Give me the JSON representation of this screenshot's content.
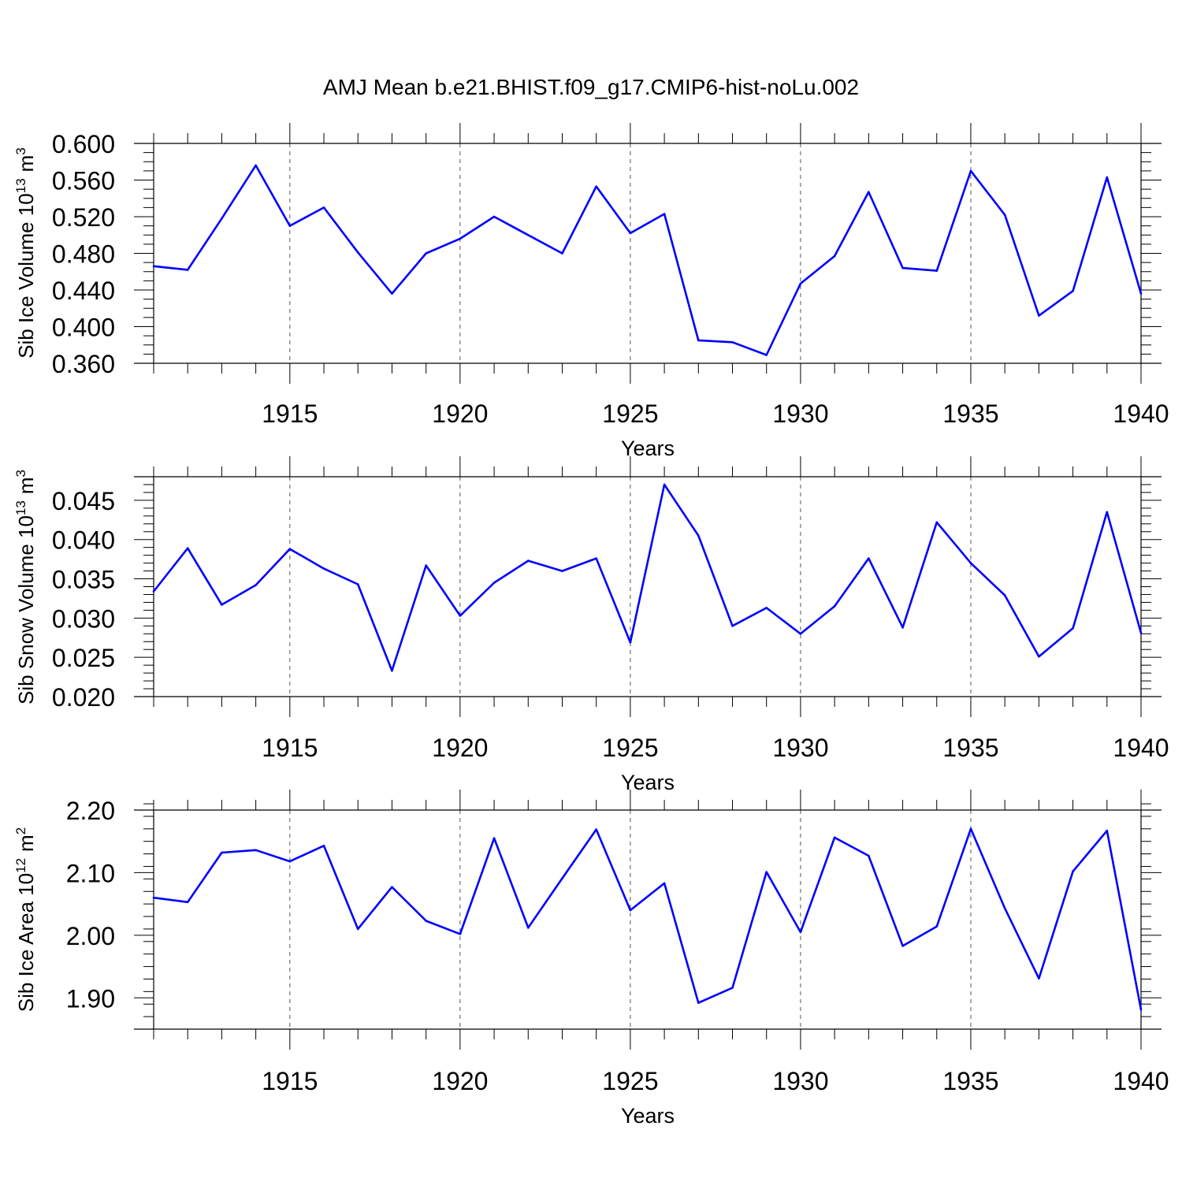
{
  "title": "AMJ Mean b.e21.BHIST.f09_g17.CMIP6-hist-noLu.002",
  "line_color": "#0000ff",
  "chart_data": [
    {
      "type": "line",
      "xlabel": "Years",
      "ylabel": "Sib Ice Volume 10",
      "ylabel_sup": "13",
      "ylabel_unit": "m",
      "ylabel_unit_sup": "3",
      "xlim": [
        1911,
        1940
      ],
      "ylim": [
        0.36,
        0.6
      ],
      "yticks": [
        0.36,
        0.4,
        0.44,
        0.48,
        0.52,
        0.56,
        0.6
      ],
      "ytick_labels": [
        "0.360",
        "0.400",
        "0.440",
        "0.480",
        "0.520",
        "0.560",
        "0.600"
      ],
      "ytick_minor_step": 0.01,
      "xticks": [
        1915,
        1920,
        1925,
        1930,
        1935,
        1940
      ],
      "xtick_labels": [
        "1915",
        "1920",
        "1925",
        "1930",
        "1935",
        "1940"
      ],
      "grid": "vertical dashed at major x ticks",
      "x": [
        1911,
        1912,
        1913,
        1914,
        1915,
        1916,
        1917,
        1918,
        1919,
        1920,
        1921,
        1922,
        1923,
        1924,
        1925,
        1926,
        1927,
        1928,
        1929,
        1930,
        1931,
        1932,
        1933,
        1934,
        1935,
        1936,
        1937,
        1938,
        1939,
        1940
      ],
      "series": [
        {
          "values": [
            0.466,
            0.462,
            0.518,
            0.576,
            0.51,
            0.53,
            0.481,
            0.436,
            0.48,
            0.496,
            0.52,
            0.5,
            0.48,
            0.553,
            0.502,
            0.523,
            0.385,
            0.383,
            0.369,
            0.447,
            0.477,
            0.547,
            0.464,
            0.461,
            0.57,
            0.522,
            0.412,
            0.439,
            0.563,
            0.436
          ]
        }
      ]
    },
    {
      "type": "line",
      "xlabel": "Years",
      "ylabel": "Sib Snow Volume 10",
      "ylabel_sup": "13",
      "ylabel_unit": "m",
      "ylabel_unit_sup": "3",
      "xlim": [
        1911,
        1940
      ],
      "ylim": [
        0.02,
        0.048
      ],
      "yticks": [
        0.02,
        0.025,
        0.03,
        0.035,
        0.04,
        0.045
      ],
      "ytick_labels": [
        "0.020",
        "0.025",
        "0.030",
        "0.035",
        "0.040",
        "0.045"
      ],
      "ytick_minor_step": 0.001,
      "xticks": [
        1915,
        1920,
        1925,
        1930,
        1935,
        1940
      ],
      "xtick_labels": [
        "1915",
        "1920",
        "1925",
        "1930",
        "1935",
        "1940"
      ],
      "grid": "vertical dashed at major x ticks",
      "x": [
        1911,
        1912,
        1913,
        1914,
        1915,
        1916,
        1917,
        1918,
        1919,
        1920,
        1921,
        1922,
        1923,
        1924,
        1925,
        1926,
        1927,
        1928,
        1929,
        1930,
        1931,
        1932,
        1933,
        1934,
        1935,
        1936,
        1937,
        1938,
        1939,
        1940
      ],
      "series": [
        {
          "values": [
            0.0334,
            0.0389,
            0.0317,
            0.0342,
            0.0388,
            0.0363,
            0.0343,
            0.0233,
            0.0367,
            0.0303,
            0.0345,
            0.0373,
            0.036,
            0.0376,
            0.0269,
            0.047,
            0.0405,
            0.029,
            0.0313,
            0.028,
            0.0315,
            0.0376,
            0.0288,
            0.0422,
            0.037,
            0.0329,
            0.0251,
            0.0287,
            0.0435,
            0.0281
          ]
        }
      ]
    },
    {
      "type": "line",
      "xlabel": "Years",
      "ylabel": "Sib Ice Area 10",
      "ylabel_sup": "12",
      "ylabel_unit": "m",
      "ylabel_unit_sup": "2",
      "xlim": [
        1911,
        1940
      ],
      "ylim": [
        1.85,
        2.2
      ],
      "yticks": [
        1.9,
        2.0,
        2.1,
        2.2
      ],
      "ytick_labels": [
        "1.90",
        "2.00",
        "2.10",
        "2.20"
      ],
      "ytick_minor_step": 0.02,
      "xticks": [
        1915,
        1920,
        1925,
        1930,
        1935,
        1940
      ],
      "xtick_labels": [
        "1915",
        "1920",
        "1925",
        "1930",
        "1935",
        "1940"
      ],
      "grid": "vertical dashed at major x ticks",
      "x": [
        1911,
        1912,
        1913,
        1914,
        1915,
        1916,
        1917,
        1918,
        1919,
        1920,
        1921,
        1922,
        1923,
        1924,
        1925,
        1926,
        1927,
        1928,
        1929,
        1930,
        1931,
        1932,
        1933,
        1934,
        1935,
        1936,
        1937,
        1938,
        1939,
        1940
      ],
      "series": [
        {
          "values": [
            2.06,
            2.053,
            2.132,
            2.136,
            2.118,
            2.143,
            2.01,
            2.077,
            2.023,
            2.002,
            2.155,
            2.012,
            2.091,
            2.169,
            2.04,
            2.083,
            1.892,
            1.916,
            2.101,
            2.005,
            2.156,
            2.127,
            1.983,
            2.014,
            2.17,
            2.043,
            1.931,
            2.102,
            2.167,
            1.881
          ]
        }
      ]
    }
  ]
}
